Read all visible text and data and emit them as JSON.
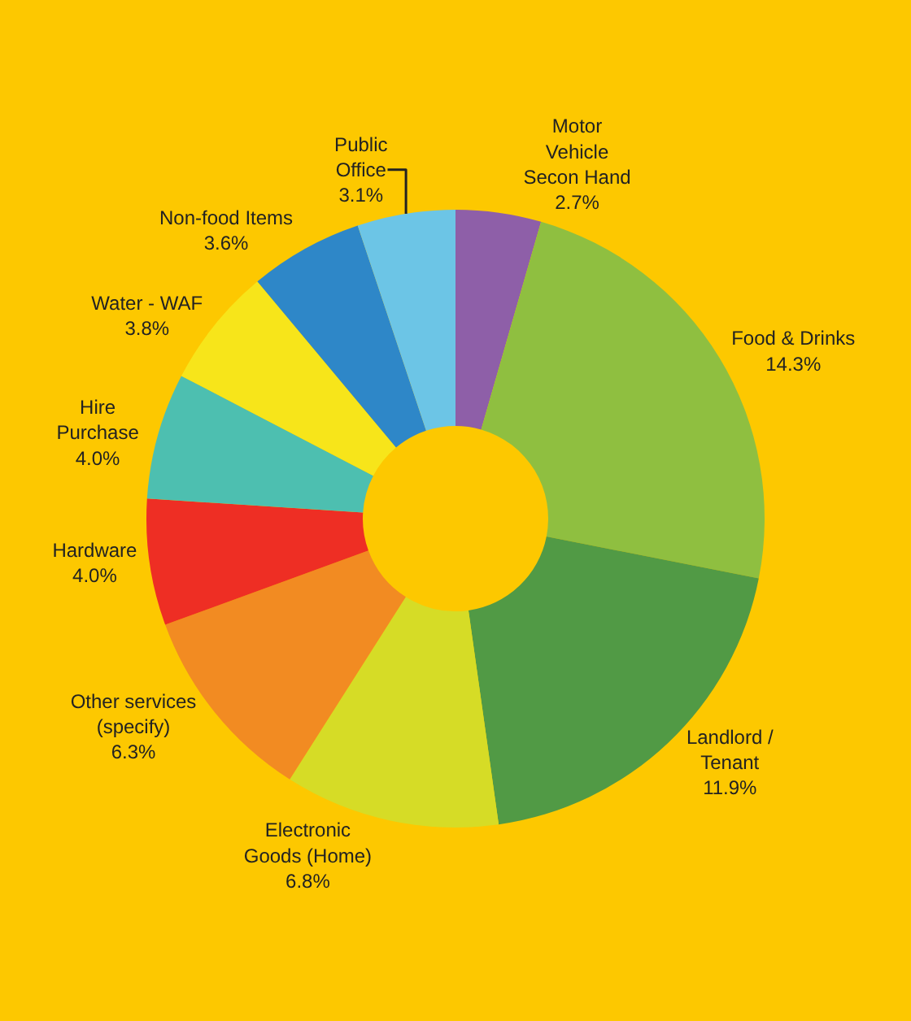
{
  "chart_data": {
    "type": "donut",
    "categories": [
      "Motor\nVehicle\nSecon Hand",
      "Food & Drinks",
      "Landlord /\nTenant",
      "Electronic\nGoods (Home)",
      "Other services\n(specify)",
      "Hardware",
      "Hire\nPurchase",
      "Water - WAF",
      "Non-food Items",
      "Public\nOffice"
    ],
    "values": [
      2.7,
      14.3,
      11.9,
      6.8,
      6.3,
      4.0,
      4.0,
      3.8,
      3.6,
      3.1
    ],
    "value_labels": [
      "2.7%",
      "14.3%",
      "11.9%",
      "6.8%",
      "6.3%",
      "4.0%",
      "4.0%",
      "3.8%",
      "3.6%",
      "3.1%"
    ],
    "colors": [
      "#8e5fa8",
      "#8fbf40",
      "#519a45",
      "#d6dc26",
      "#f28b22",
      "#ee2e24",
      "#4dbfb0",
      "#f7e51a",
      "#2e87c8",
      "#6cc5e6"
    ],
    "legend": false
  }
}
